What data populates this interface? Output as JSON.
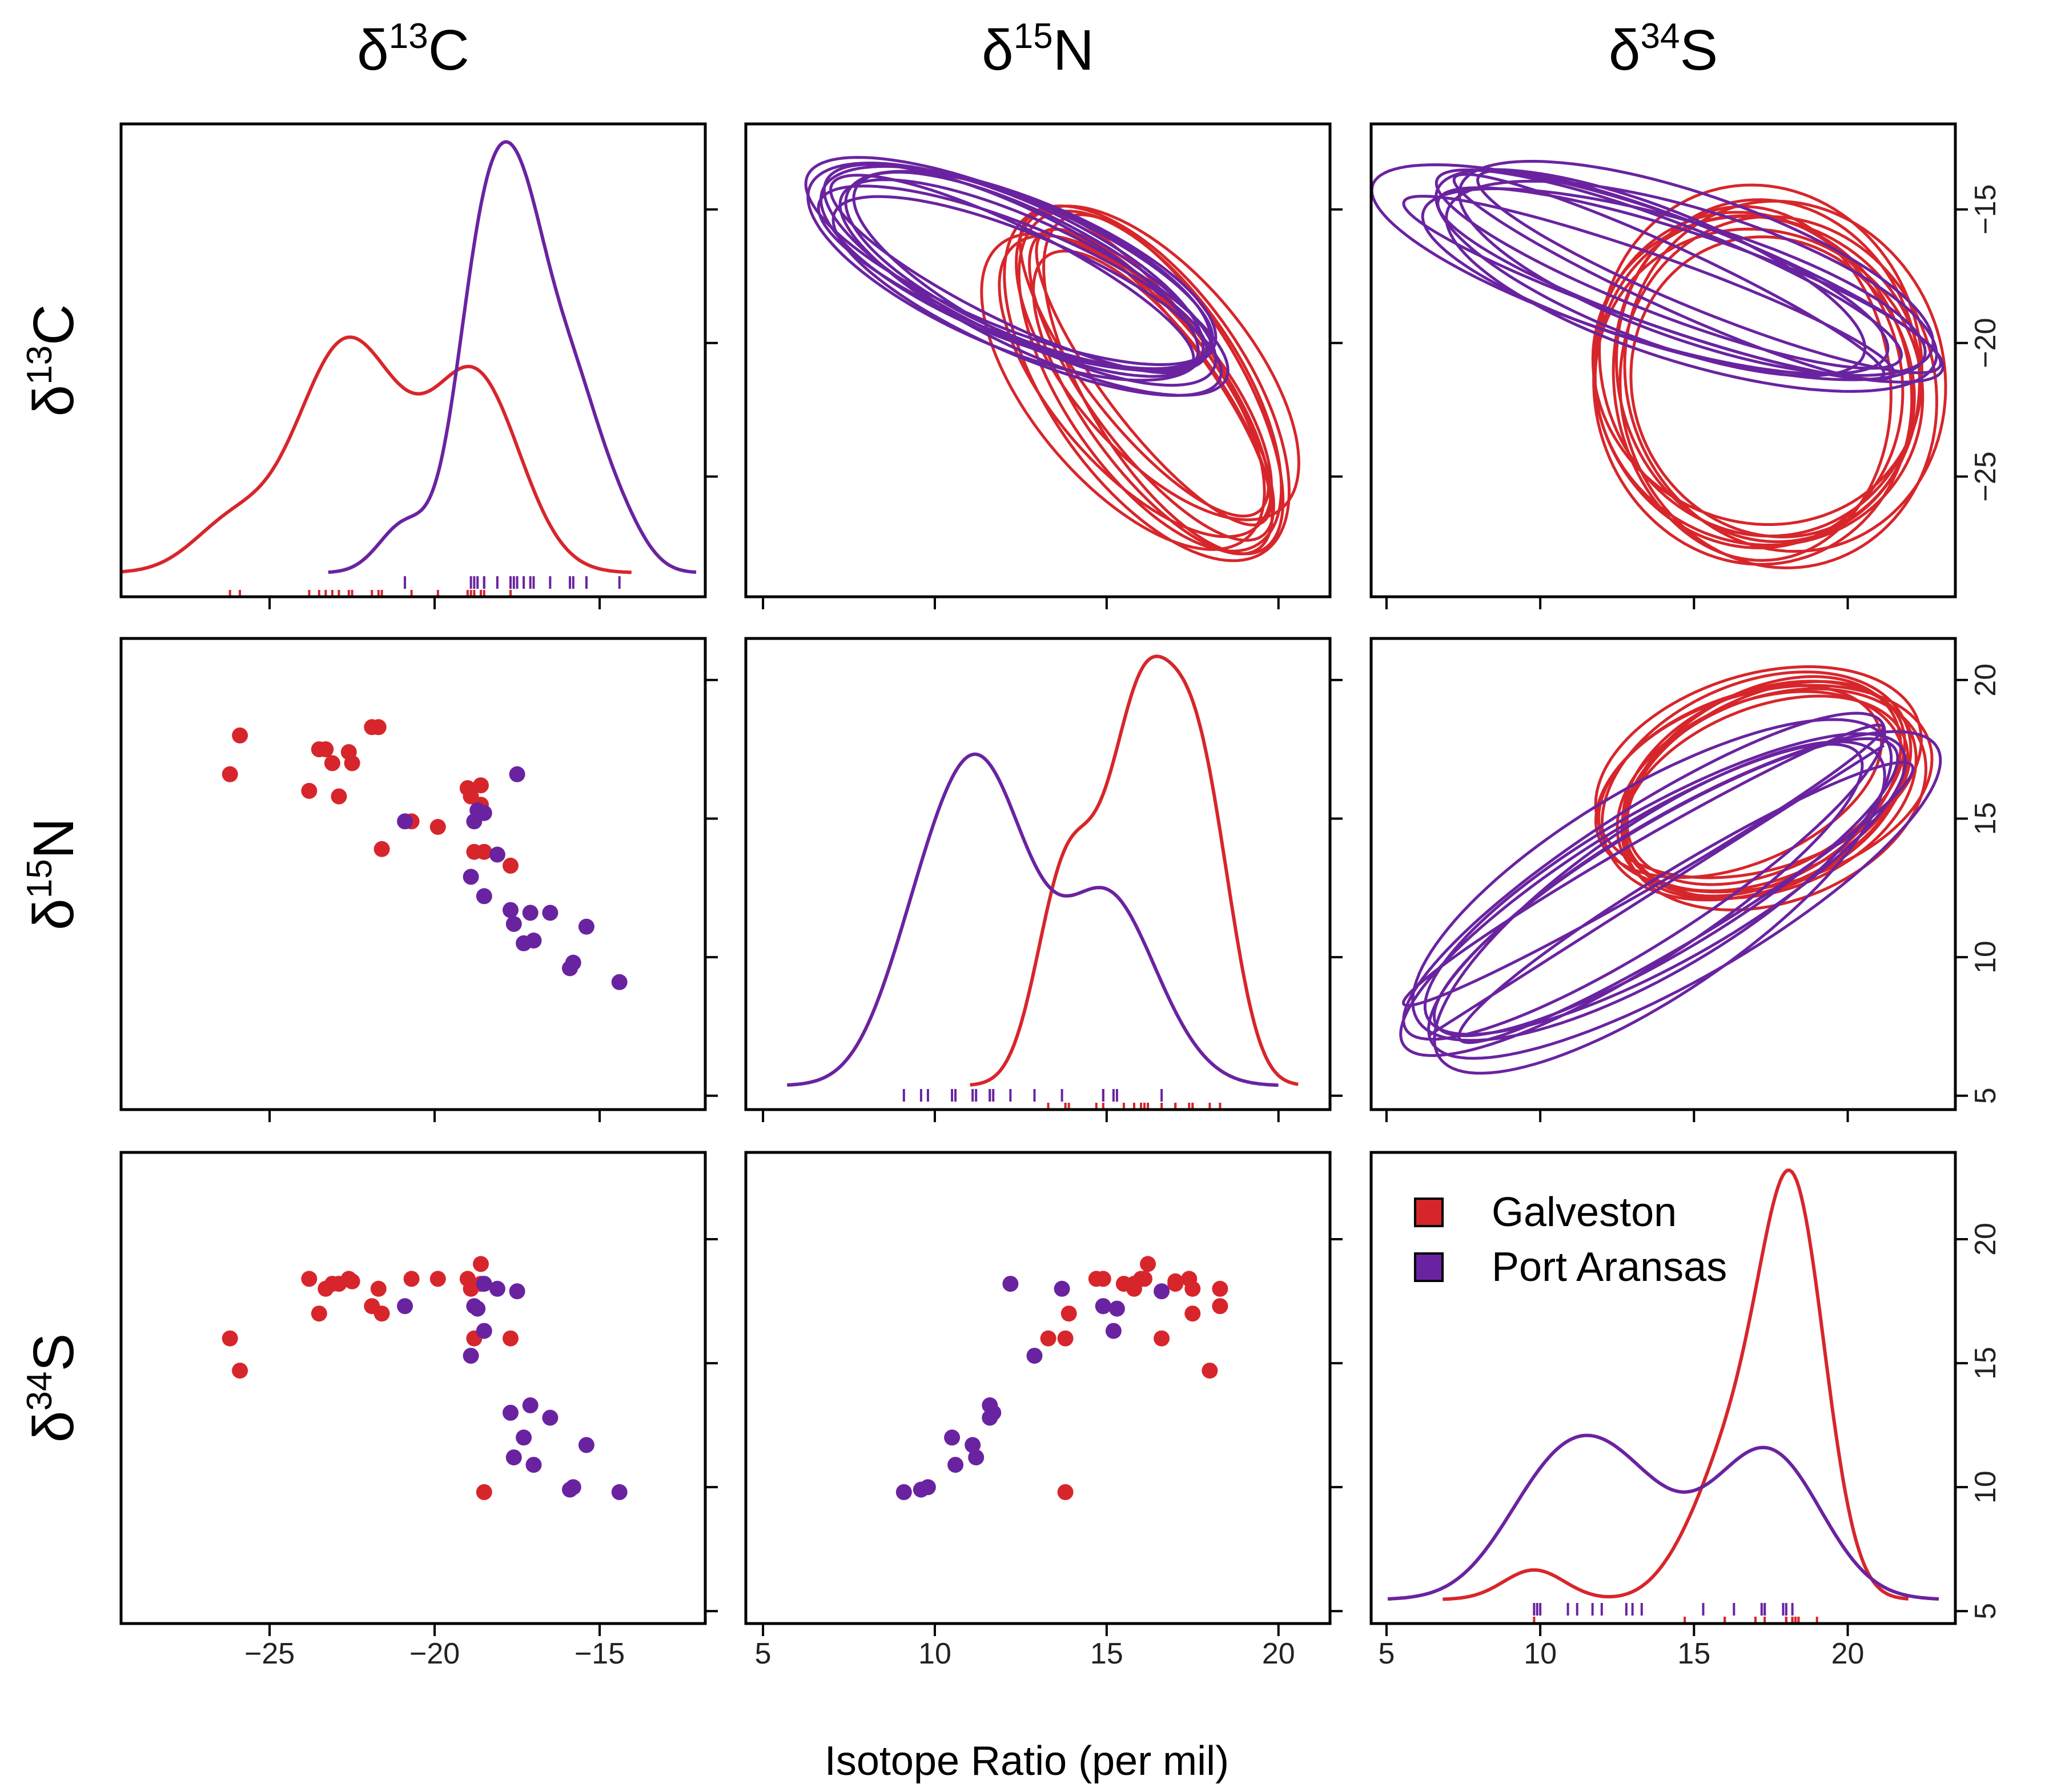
{
  "chart_data": {
    "type": "pairs",
    "title": "",
    "xlabel": "Isotope Ratio (per mil)",
    "variables": [
      {
        "key": "d13C",
        "symbol": "δ",
        "sup": "13",
        "elem": "C",
        "range": [
          -29.5,
          -11.8
        ],
        "ticks": [
          -25,
          -20,
          -15
        ],
        "right_tick_labels": [
          "−15",
          "−20",
          "−25"
        ]
      },
      {
        "key": "d15N",
        "symbol": "δ",
        "sup": "15",
        "elem": "N",
        "range": [
          4.5,
          21.5
        ],
        "ticks": [
          5,
          10,
          15,
          20
        ],
        "right_tick_labels": [
          "20",
          "15",
          "10",
          "5"
        ]
      },
      {
        "key": "d34S",
        "symbol": "δ",
        "sup": "34",
        "elem": "S",
        "range": [
          4.5,
          23.5
        ],
        "ticks": [
          5,
          10,
          15,
          20
        ],
        "right_tick_labels": [
          "20",
          "15",
          "10",
          "5"
        ]
      }
    ],
    "bottom_tick_labels": [
      [
        "−25",
        "−20",
        "−15"
      ],
      [
        "5",
        "10",
        "15",
        "20"
      ],
      [
        "5",
        "10",
        "15",
        "20"
      ]
    ],
    "legend": {
      "position": "top-left of lower-right panel",
      "entries": [
        {
          "label": "Galveston",
          "color": "#d7262b"
        },
        {
          "label": "Port Aransas",
          "color": "#6a23a0"
        }
      ]
    },
    "series": [
      {
        "name": "Galveston",
        "color": "#d7262b",
        "points": [
          [
            -26.2,
            16.6,
            16.0
          ],
          [
            -25.9,
            18.0,
            14.7
          ],
          [
            -23.8,
            16.0,
            18.4
          ],
          [
            -23.5,
            17.5,
            17.0
          ],
          [
            -23.3,
            17.5,
            18.0
          ],
          [
            -23.1,
            17.0,
            18.2
          ],
          [
            -22.9,
            15.8,
            18.2
          ],
          [
            -22.6,
            17.4,
            18.4
          ],
          [
            -22.5,
            17.0,
            18.3
          ],
          [
            -21.9,
            18.3,
            17.3
          ],
          [
            -21.7,
            18.3,
            18.0
          ],
          [
            -21.6,
            13.9,
            17.0
          ],
          [
            -20.7,
            14.9,
            18.4
          ],
          [
            -19.9,
            14.7,
            18.4
          ],
          [
            -19.0,
            16.1,
            18.4
          ],
          [
            -18.9,
            15.8,
            18.0
          ],
          [
            -18.8,
            13.8,
            16.0
          ],
          [
            -18.6,
            16.2,
            19.0
          ],
          [
            -18.6,
            15.5,
            18.2
          ],
          [
            -18.5,
            13.8,
            9.8
          ],
          [
            -17.7,
            13.3,
            16.0
          ]
        ]
      },
      {
        "name": "Port Aransas",
        "color": "#6a23a0",
        "points": [
          [
            -20.9,
            14.9,
            17.3
          ],
          [
            -18.9,
            12.9,
            15.3
          ],
          [
            -18.8,
            14.9,
            17.3
          ],
          [
            -18.7,
            15.3,
            17.2
          ],
          [
            -18.5,
            12.2,
            18.2
          ],
          [
            -18.5,
            15.2,
            16.3
          ],
          [
            -18.1,
            13.7,
            18.0
          ],
          [
            -17.7,
            11.7,
            13.0
          ],
          [
            -17.6,
            11.2,
            11.2
          ],
          [
            -17.5,
            16.6,
            17.9
          ],
          [
            -17.3,
            10.5,
            12.0
          ],
          [
            -17.1,
            11.6,
            13.3
          ],
          [
            -17.0,
            10.6,
            10.9
          ],
          [
            -16.5,
            11.6,
            12.8
          ],
          [
            -15.9,
            9.6,
            9.9
          ],
          [
            -15.8,
            9.8,
            10.0
          ],
          [
            -15.4,
            11.1,
            11.7
          ],
          [
            -14.4,
            9.1,
            9.8
          ]
        ]
      }
    ],
    "panels": {
      "diagonal": "kernel density with rug",
      "lower": "scatter",
      "upper": "bootstrap 95% ellipses (10 per group)"
    }
  }
}
